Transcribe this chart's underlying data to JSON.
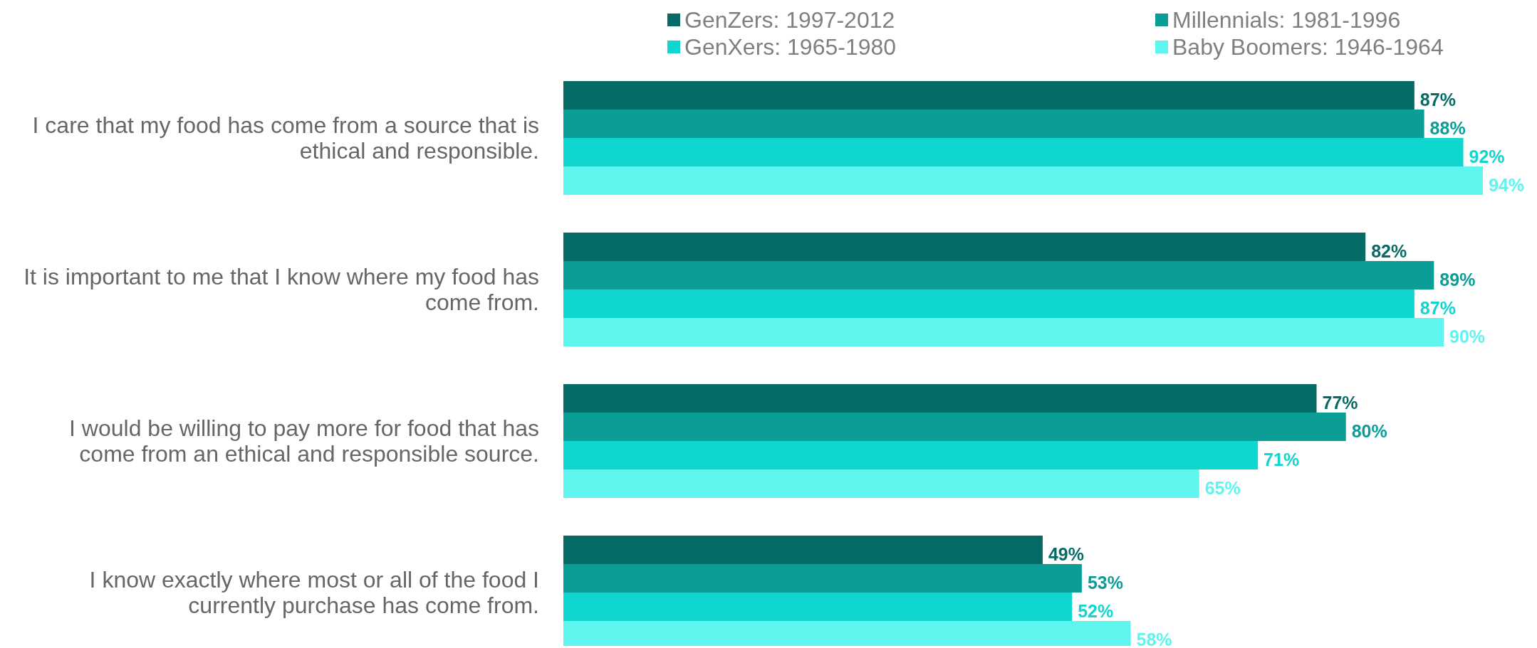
{
  "chart_data": {
    "type": "bar",
    "orientation": "horizontal",
    "categories": [
      "I care that my food has come from a source that is ethical and responsible.",
      "It is important to me that I know where my food has come from.",
      "I would be willing to pay more for food that has come from an ethical and responsible source.",
      "I know exactly where most or all of the food I currently purchase has come from."
    ],
    "series": [
      {
        "name": "GenZers: 1997-2012",
        "color": "#066b66",
        "values": [
          87,
          82,
          77,
          49
        ],
        "value_labels": [
          "87%",
          "82%",
          "77%",
          "49%"
        ]
      },
      {
        "name": "Millennials: 1981-1996",
        "color": "#0a9e97",
        "values": [
          88,
          89,
          80,
          53
        ],
        "value_labels": [
          "88%",
          "89%",
          "80%",
          "53%"
        ]
      },
      {
        "name": "GenXers: 1965-1980",
        "color": "#0fd6ce",
        "values": [
          92,
          87,
          71,
          52
        ],
        "value_labels": [
          "92%",
          "87%",
          "71%",
          "52%"
        ]
      },
      {
        "name": "Baby Boomers: 1946-1964",
        "color": "#5ff5ef",
        "values": [
          94,
          90,
          65,
          58
        ],
        "value_labels": [
          "94%",
          "90%",
          "65%",
          "58%"
        ]
      }
    ],
    "legend": "top"
  }
}
